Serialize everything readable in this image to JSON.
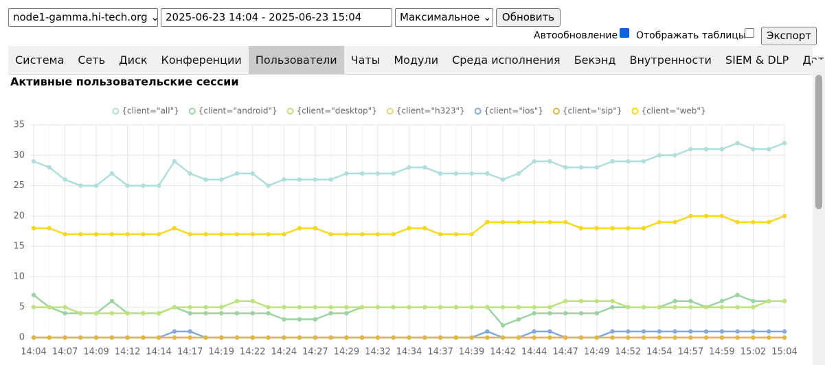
{
  "controls": {
    "node": "node1-gamma.hi-tech.org",
    "range": "2025-06-23 14:04 - 2025-06-23 15:04",
    "mode": "Максимальное",
    "refresh": "Обновить",
    "autoupdate": "Автообновление",
    "autoupdate_checked": true,
    "show_tables": "Отображать таблицы",
    "show_tables_checked": false,
    "export": "Экспорт"
  },
  "tabs": [
    "Система",
    "Сеть",
    "Диск",
    "Конференции",
    "Пользователи",
    "Чаты",
    "Модули",
    "Среда исполнения",
    "Бекэнд",
    "Внутренности",
    "SIEM & DLP",
    "Датчики"
  ],
  "active_tab": 4,
  "chart_data": {
    "type": "line",
    "title": "Активные пользовательские сессии",
    "categories": [
      "14:04",
      null,
      "14:07",
      null,
      "14:09",
      null,
      "14:12",
      null,
      "14:14",
      null,
      "14:17",
      null,
      "14:19",
      null,
      "14:22",
      null,
      "14:24",
      null,
      "14:27",
      null,
      "14:29",
      null,
      "14:32",
      null,
      "14:34",
      null,
      "14:37",
      null,
      "14:39",
      null,
      "14:42",
      null,
      "14:44",
      null,
      "14:47",
      null,
      "14:49",
      null,
      "14:52",
      null,
      "14:54",
      null,
      "14:57",
      null,
      "14:59",
      null,
      "15:02",
      null,
      "15:04"
    ],
    "series": [
      {
        "name": "{client=\"all\"}",
        "color": "#b0dedb",
        "values": [
          29,
          28,
          26,
          25,
          25,
          27,
          25,
          25,
          25,
          29,
          27,
          26,
          26,
          27,
          27,
          25,
          26,
          26,
          26,
          26,
          27,
          27,
          27,
          27,
          28,
          28,
          27,
          27,
          27,
          27,
          26,
          27,
          29,
          29,
          28,
          28,
          28,
          29,
          29,
          29,
          30,
          30,
          31,
          31,
          31,
          32,
          31,
          31,
          32
        ]
      },
      {
        "name": "{client=\"android\"}",
        "color": "#9dd3a3",
        "values": [
          7,
          5,
          4,
          4,
          4,
          6,
          4,
          4,
          4,
          5,
          4,
          4,
          4,
          4,
          4,
          4,
          3,
          3,
          3,
          4,
          4,
          5,
          5,
          5,
          5,
          5,
          5,
          5,
          5,
          5,
          2,
          3,
          4,
          4,
          4,
          4,
          4,
          5,
          5,
          5,
          5,
          6,
          6,
          5,
          6,
          7,
          6,
          6,
          6
        ]
      },
      {
        "name": "{client=\"desktop\"}",
        "color": "#bee27e",
        "values": [
          5,
          5,
          5,
          4,
          4,
          4,
          4,
          4,
          4,
          5,
          5,
          5,
          5,
          6,
          6,
          5,
          5,
          5,
          5,
          5,
          5,
          5,
          5,
          5,
          5,
          5,
          5,
          5,
          5,
          5,
          5,
          5,
          5,
          5,
          6,
          6,
          6,
          6,
          5,
          5,
          5,
          5,
          5,
          5,
          5,
          5,
          5,
          6,
          6
        ]
      },
      {
        "name": "{client=\"h323\"}",
        "color": "#ead27f",
        "values": [
          0,
          0,
          0,
          0,
          0,
          0,
          0,
          0,
          0,
          0,
          0,
          0,
          0,
          0,
          0,
          0,
          0,
          0,
          0,
          0,
          0,
          0,
          0,
          0,
          0,
          0,
          0,
          0,
          0,
          0,
          0,
          0,
          0,
          0,
          0,
          0,
          0,
          0,
          0,
          0,
          0,
          0,
          0,
          0,
          0,
          0,
          0,
          0,
          0
        ]
      },
      {
        "name": "{client=\"ios\"}",
        "color": "#82a8dc",
        "values": [
          0,
          0,
          0,
          0,
          0,
          0,
          0,
          0,
          0,
          1,
          1,
          0,
          0,
          0,
          0,
          0,
          0,
          0,
          0,
          0,
          0,
          0,
          0,
          0,
          0,
          0,
          0,
          0,
          0,
          1,
          0,
          0,
          1,
          1,
          0,
          0,
          0,
          1,
          1,
          1,
          1,
          1,
          1,
          1,
          1,
          1,
          1,
          1,
          1
        ]
      },
      {
        "name": "{client=\"sip\"}",
        "color": "#e1b64a",
        "values": [
          0,
          0,
          0,
          0,
          0,
          0,
          0,
          0,
          0,
          0,
          0,
          0,
          0,
          0,
          0,
          0,
          0,
          0,
          0,
          0,
          0,
          0,
          0,
          0,
          0,
          0,
          0,
          0,
          0,
          0,
          0,
          0,
          0,
          0,
          0,
          0,
          0,
          0,
          0,
          0,
          0,
          0,
          0,
          0,
          0,
          0,
          0,
          0,
          0
        ]
      },
      {
        "name": "{client=\"web\"}",
        "color": "#f7d91c",
        "values": [
          18,
          18,
          17,
          17,
          17,
          17,
          17,
          17,
          17,
          18,
          17,
          17,
          17,
          17,
          17,
          17,
          17,
          18,
          18,
          17,
          17,
          17,
          17,
          17,
          18,
          18,
          17,
          17,
          17,
          19,
          19,
          19,
          19,
          19,
          19,
          18,
          18,
          18,
          18,
          18,
          19,
          19,
          20,
          20,
          20,
          19,
          19,
          19,
          20
        ]
      }
    ],
    "ylim": [
      0,
      35
    ],
    "yticks": [
      0,
      5,
      10,
      15,
      20,
      25,
      30,
      35
    ],
    "grid": true,
    "legend": "top"
  }
}
